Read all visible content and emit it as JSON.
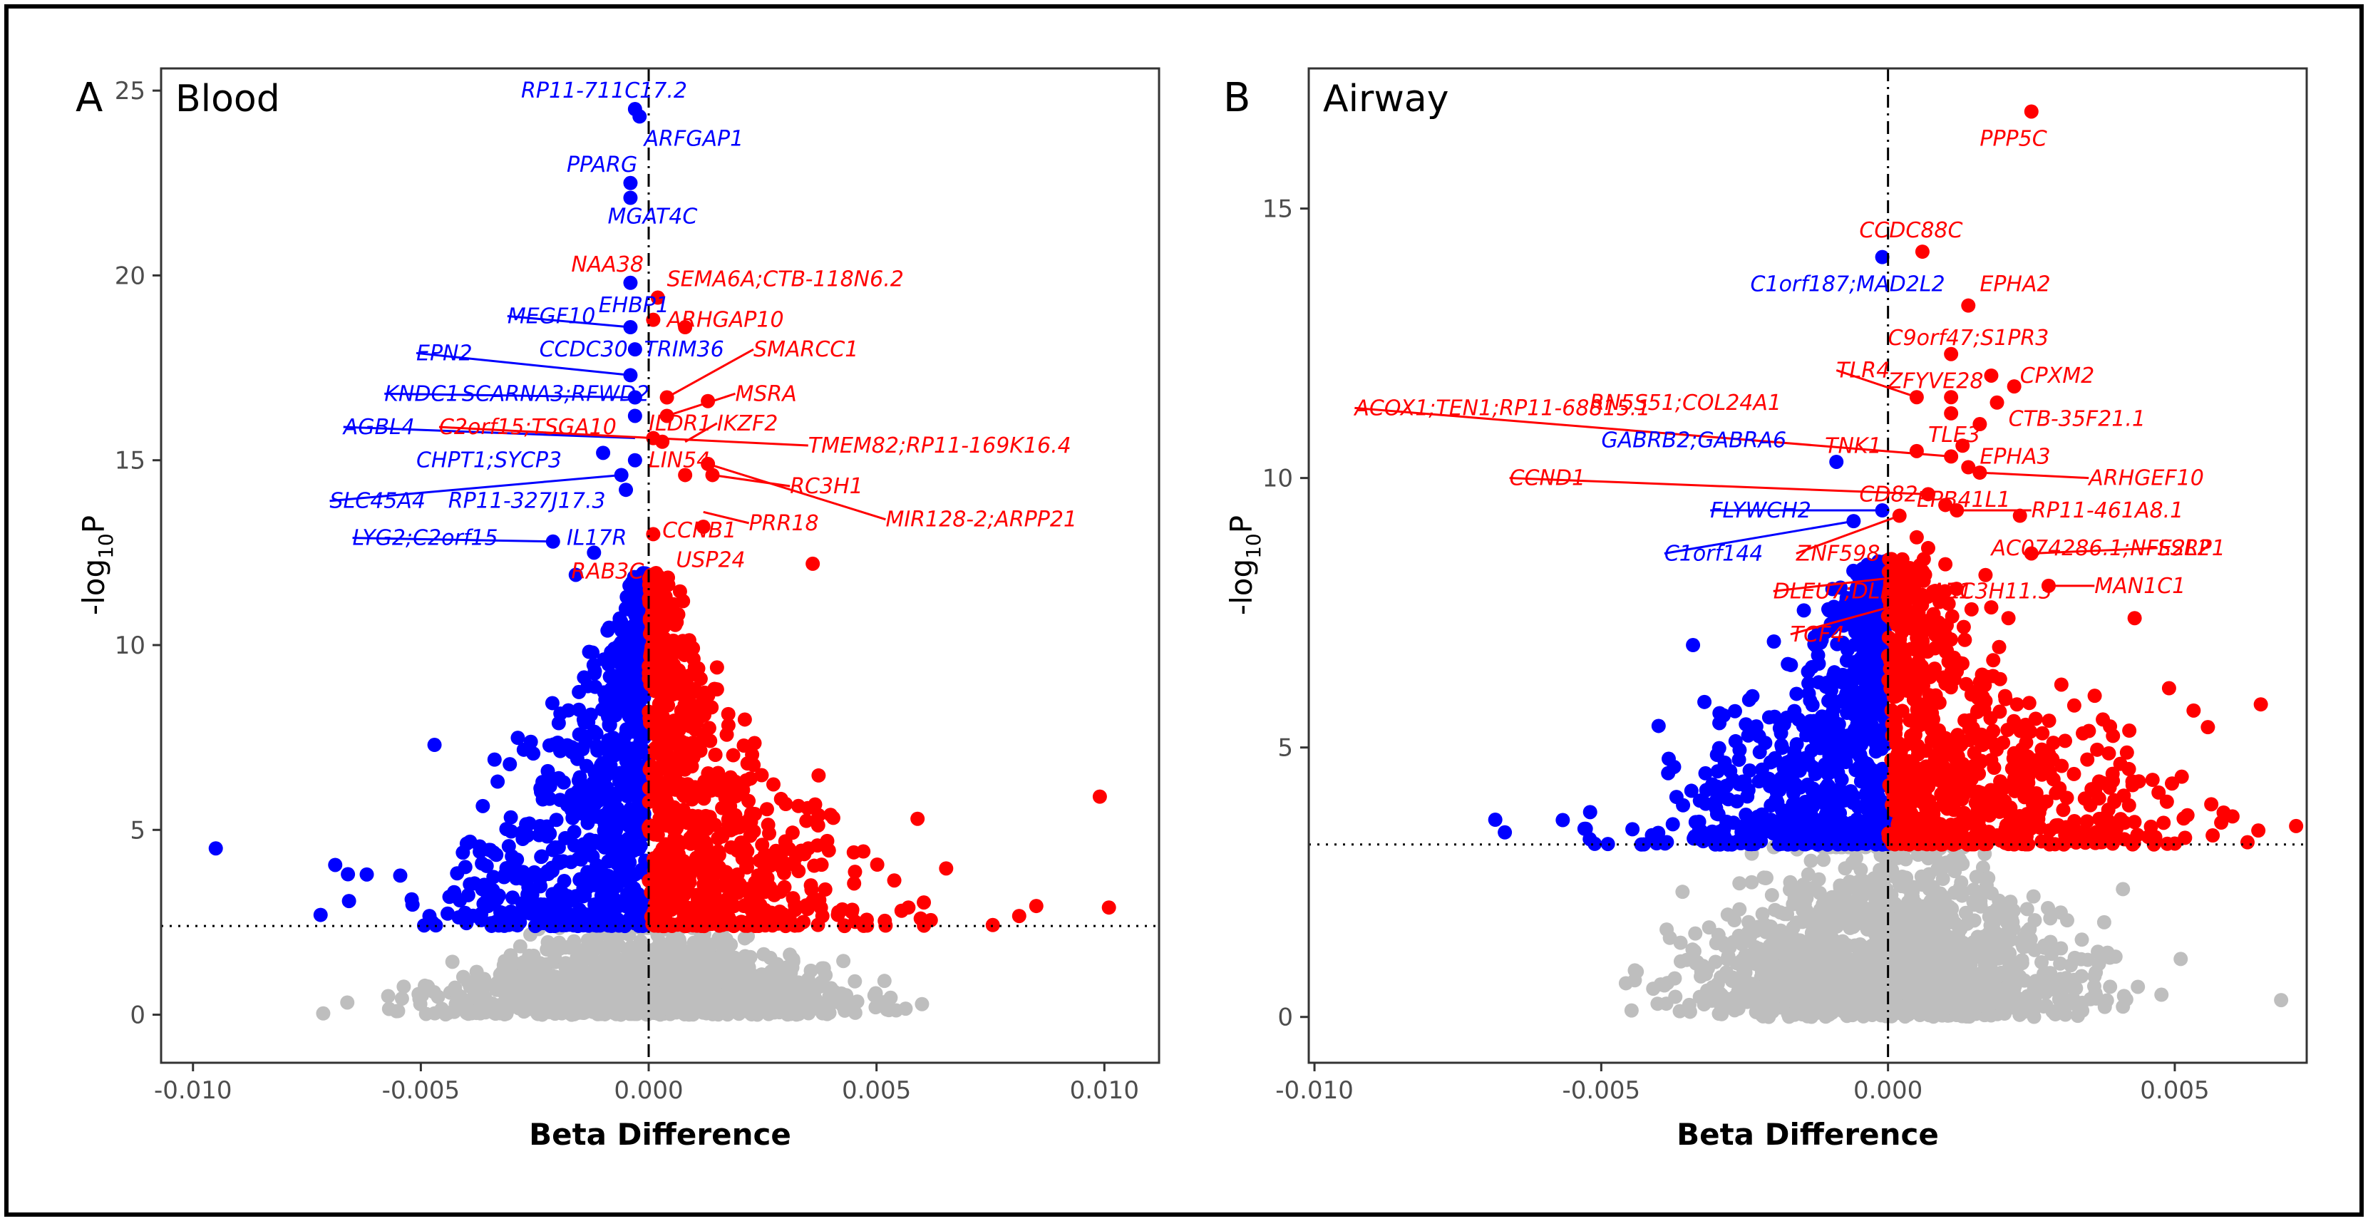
{
  "colors": {
    "down": "#0000ff",
    "up": "#ff0000",
    "ns": "#bebebe",
    "frame": "#000000",
    "axis": "#333333"
  },
  "chart_data": [
    {
      "type": "scatter",
      "panel_letter": "A",
      "title": "Blood",
      "xlabel": "Beta Difference",
      "ylabel_main": "-log",
      "ylabel_sub": "10",
      "ylabel_tail": "P",
      "xlim": [
        -0.0107,
        0.0112
      ],
      "ylim": [
        -1.3,
        25.6
      ],
      "x_ticks": [
        -0.01,
        -0.005,
        0.0,
        0.005,
        0.01
      ],
      "x_tick_labels": [
        "-0.010",
        "-0.005",
        "0.000",
        "0.005",
        "0.010"
      ],
      "y_ticks": [
        0,
        5,
        10,
        15,
        20,
        25
      ],
      "y_tick_labels": [
        "0",
        "5",
        "10",
        "15",
        "20",
        "25"
      ],
      "threshold": 2.4,
      "grid": false,
      "highlighted": [
        {
          "x": -0.0003,
          "y": 24.5
        },
        {
          "x": -0.0002,
          "y": 24.3
        },
        {
          "x": -0.0004,
          "y": 22.5
        },
        {
          "x": -0.0004,
          "y": 22.1
        },
        {
          "x": -0.0004,
          "y": 19.8
        },
        {
          "x": 0.0002,
          "y": 19.4
        },
        {
          "x": 0.0001,
          "y": 18.8
        },
        {
          "x": 0.0008,
          "y": 18.6
        },
        {
          "x": -0.0004,
          "y": 18.6
        },
        {
          "x": -0.0003,
          "y": 18.0
        },
        {
          "x": -0.0004,
          "y": 17.3
        },
        {
          "x": -0.0003,
          "y": 16.7
        },
        {
          "x": 0.0004,
          "y": 16.7
        },
        {
          "x": 0.0013,
          "y": 16.6
        },
        {
          "x": -0.0003,
          "y": 16.2
        },
        {
          "x": 0.0004,
          "y": 16.2
        },
        {
          "x": 0.0001,
          "y": 15.6
        },
        {
          "x": 0.0003,
          "y": 15.5
        },
        {
          "x": -0.001,
          "y": 15.2
        },
        {
          "x": -0.0003,
          "y": 15.0
        },
        {
          "x": 0.0008,
          "y": 14.6
        },
        {
          "x": 0.0013,
          "y": 14.9
        },
        {
          "x": 0.0014,
          "y": 14.6
        },
        {
          "x": -0.0006,
          "y": 14.6
        },
        {
          "x": -0.0005,
          "y": 14.2
        },
        {
          "x": -0.0021,
          "y": 12.8
        },
        {
          "x": -0.0012,
          "y": 12.5
        },
        {
          "x": 0.0001,
          "y": 13.0
        },
        {
          "x": 0.0012,
          "y": 13.2
        },
        {
          "x": -0.0016,
          "y": 11.9
        },
        {
          "x": 0.0036,
          "y": 12.2
        }
      ],
      "labels": [
        {
          "text": "RP11-711C17.2",
          "side": "down",
          "x": -0.0003,
          "y": 24.5,
          "lx": -0.0028,
          "ly": 25.0,
          "leader": false
        },
        {
          "text": "ARFGAP1",
          "side": "down",
          "x": -0.0002,
          "y": 24.3,
          "lx": -0.0001,
          "ly": 23.7,
          "leader": false
        },
        {
          "text": "PPARG",
          "side": "down",
          "x": -0.0004,
          "y": 22.5,
          "lx": -0.0018,
          "ly": 23.0,
          "leader": false
        },
        {
          "text": "MGAT4C",
          "side": "down",
          "x": -0.0004,
          "y": 22.1,
          "lx": -0.0009,
          "ly": 21.6,
          "leader": false
        },
        {
          "text": "NAA38",
          "side": "up",
          "x": -0.0004,
          "y": 19.8,
          "lx": -0.0017,
          "ly": 20.3,
          "leader": false
        },
        {
          "text": "SEMA6A;CTB-118N6.2",
          "side": "up",
          "x": 0.0002,
          "y": 19.4,
          "lx": 0.0004,
          "ly": 19.9,
          "leader": false
        },
        {
          "text": "ARHGAP10",
          "side": "up",
          "x": 0.0001,
          "y": 18.8,
          "lx": 0.0004,
          "ly": 18.8,
          "leader": false
        },
        {
          "text": "MEGF10",
          "side": "down",
          "x": -0.0004,
          "y": 18.6,
          "lx": -0.0031,
          "ly": 18.9,
          "leader": true
        },
        {
          "text": "EHBP1",
          "side": "down",
          "x": -0.0004,
          "y": 18.6,
          "lx": -0.0011,
          "ly": 19.2,
          "leader": false
        },
        {
          "text": "TRIM36",
          "side": "down",
          "x": -0.0003,
          "y": 18.0,
          "lx": -0.0001,
          "ly": 18.0,
          "leader": false
        },
        {
          "text": "CCDC30",
          "side": "down",
          "x": -0.0003,
          "y": 18.0,
          "lx": -0.0024,
          "ly": 18.0,
          "leader": false
        },
        {
          "text": "SMARCC1",
          "side": "up",
          "x": 0.0004,
          "y": 16.7,
          "lx": 0.0023,
          "ly": 18.0,
          "leader": true
        },
        {
          "text": "EPN2",
          "side": "down",
          "x": -0.0004,
          "y": 17.3,
          "lx": -0.0051,
          "ly": 17.9,
          "leader": true
        },
        {
          "text": "KNDC1",
          "side": "down",
          "x": -0.0003,
          "y": 16.7,
          "lx": -0.0058,
          "ly": 16.8,
          "leader": true
        },
        {
          "text": "SCARNA3;RFWD2",
          "side": "down",
          "x": -0.0003,
          "y": 16.2,
          "lx": -0.0041,
          "ly": 16.8,
          "leader": false
        },
        {
          "text": "MSRA",
          "side": "up",
          "x": 0.0004,
          "y": 16.2,
          "lx": 0.0019,
          "ly": 16.8,
          "leader": true
        },
        {
          "text": "AGBL4",
          "side": "down",
          "x": -0.0003,
          "y": 15.6,
          "lx": -0.0067,
          "ly": 15.9,
          "leader": true
        },
        {
          "text": "C2orf15;TSGA10",
          "side": "up",
          "x": 0.0001,
          "y": 15.6,
          "lx": -0.0046,
          "ly": 15.9,
          "leader": true
        },
        {
          "text": "ILDR1",
          "side": "up",
          "x": 0.0003,
          "y": 15.5,
          "lx": 0.0,
          "ly": 16.0,
          "leader": false
        },
        {
          "text": "IKZF2",
          "side": "up",
          "x": 0.0008,
          "y": 15.5,
          "lx": 0.0015,
          "ly": 16.0,
          "leader": true
        },
        {
          "text": "TMEM82;RP11-169K16.4",
          "side": "up",
          "x": 0.0001,
          "y": 15.6,
          "lx": 0.0035,
          "ly": 15.4,
          "leader": true
        },
        {
          "text": "CHPT1;SYCP3",
          "side": "down",
          "x": -0.001,
          "y": 15.2,
          "lx": -0.0051,
          "ly": 15.0,
          "leader": false
        },
        {
          "text": "LIN54",
          "side": "up",
          "x": -0.0003,
          "y": 15.0,
          "lx": 0.0,
          "ly": 15.0,
          "leader": false
        },
        {
          "text": "RC3H1",
          "side": "up",
          "x": 0.0014,
          "y": 14.6,
          "lx": 0.0031,
          "ly": 14.3,
          "leader": true
        },
        {
          "text": "SLC45A4",
          "side": "down",
          "x": -0.0006,
          "y": 14.6,
          "lx": -0.007,
          "ly": 13.9,
          "leader": true
        },
        {
          "text": "RP11-327J17.3",
          "side": "down",
          "x": -0.0005,
          "y": 14.2,
          "lx": -0.0044,
          "ly": 13.9,
          "leader": false
        },
        {
          "text": "MIR128-2;ARPP21",
          "side": "up",
          "x": 0.0013,
          "y": 14.9,
          "lx": 0.0052,
          "ly": 13.4,
          "leader": true
        },
        {
          "text": "PRR18",
          "side": "up",
          "x": 0.0012,
          "y": 13.6,
          "lx": 0.0022,
          "ly": 13.3,
          "leader": true
        },
        {
          "text": "CCNB1",
          "side": "up",
          "x": 0.0001,
          "y": 13.0,
          "lx": 0.0003,
          "ly": 13.1,
          "leader": false
        },
        {
          "text": "LYG2;C2orf15",
          "side": "down",
          "x": -0.0021,
          "y": 12.8,
          "lx": -0.0065,
          "ly": 12.9,
          "leader": true
        },
        {
          "text": "IL17R",
          "side": "down",
          "x": -0.0012,
          "y": 12.5,
          "lx": -0.0018,
          "ly": 12.9,
          "leader": false
        },
        {
          "text": "RAB3C",
          "side": "up",
          "x": -0.0016,
          "y": 11.9,
          "lx": -0.0017,
          "ly": 12.0,
          "leader": false
        },
        {
          "text": "USP24",
          "side": "up",
          "x": 0.0001,
          "y": 12.3,
          "lx": 0.0006,
          "ly": 12.3,
          "leader": false
        }
      ]
    },
    {
      "type": "scatter",
      "panel_letter": "B",
      "title": "Airway",
      "xlabel": "Beta Difference",
      "ylabel_main": "-log",
      "ylabel_sub": "10",
      "ylabel_tail": "P",
      "xlim": [
        -0.0101,
        0.0073
      ],
      "ylim": [
        -0.85,
        17.6
      ],
      "x_ticks": [
        -0.01,
        -0.005,
        0.0,
        0.005
      ],
      "x_tick_labels": [
        "-0.010",
        "-0.005",
        "0.000",
        "0.005"
      ],
      "y_ticks": [
        0,
        5,
        10,
        15
      ],
      "y_tick_labels": [
        "0",
        "5",
        "10",
        "15"
      ],
      "threshold": 3.2,
      "grid": false,
      "highlighted": [
        {
          "x": 0.0025,
          "y": 16.8
        },
        {
          "x": 0.0006,
          "y": 14.2
        },
        {
          "x": -0.0001,
          "y": 14.1
        },
        {
          "x": 0.0014,
          "y": 13.2
        },
        {
          "x": 0.0011,
          "y": 12.3
        },
        {
          "x": 0.0018,
          "y": 11.9
        },
        {
          "x": 0.0022,
          "y": 11.7
        },
        {
          "x": 0.0019,
          "y": 11.4
        },
        {
          "x": 0.0005,
          "y": 11.5
        },
        {
          "x": 0.0011,
          "y": 11.5
        },
        {
          "x": 0.0011,
          "y": 11.2
        },
        {
          "x": 0.0016,
          "y": 11.0
        },
        {
          "x": 0.0013,
          "y": 10.6
        },
        {
          "x": 0.0011,
          "y": 10.4
        },
        {
          "x": 0.0014,
          "y": 10.2
        },
        {
          "x": 0.0005,
          "y": 10.5
        },
        {
          "x": -0.0009,
          "y": 10.3
        },
        {
          "x": 0.0016,
          "y": 10.1
        },
        {
          "x": 0.0007,
          "y": 9.7
        },
        {
          "x": 0.001,
          "y": 9.5
        },
        {
          "x": 0.0012,
          "y": 9.4
        },
        {
          "x": 0.0023,
          "y": 9.3
        },
        {
          "x": 0.0002,
          "y": 9.3
        },
        {
          "x": -0.0001,
          "y": 9.4
        },
        {
          "x": -0.0006,
          "y": 9.2
        },
        {
          "x": 0.0005,
          "y": 8.9
        },
        {
          "x": 0.0007,
          "y": 8.7
        },
        {
          "x": 0.001,
          "y": 8.4
        },
        {
          "x": 0.0025,
          "y": 8.6
        },
        {
          "x": 0.0017,
          "y": 8.2
        },
        {
          "x": 0.0028,
          "y": 8.0
        },
        {
          "x": 0.0005,
          "y": 8.2
        },
        {
          "x": 0.0007,
          "y": 7.8
        },
        {
          "x": 0.0009,
          "y": 7.7
        },
        {
          "x": 0.0021,
          "y": 7.4
        },
        {
          "x": 0.0043,
          "y": 7.4
        },
        {
          "x": 0.0018,
          "y": 7.6
        }
      ],
      "labels": [
        {
          "text": "PPP5C",
          "side": "up",
          "x": 0.0025,
          "y": 16.8,
          "lx": 0.0016,
          "ly": 16.3,
          "leader": false
        },
        {
          "text": "CCDC88C",
          "side": "up",
          "x": 0.0006,
          "y": 14.2,
          "lx": -0.0005,
          "ly": 14.6,
          "leader": false
        },
        {
          "text": "C1orf187;MAD2L2",
          "side": "down",
          "x": -0.0001,
          "y": 14.1,
          "lx": -0.0024,
          "ly": 13.6,
          "leader": false
        },
        {
          "text": "EPHA2",
          "side": "up",
          "x": 0.0014,
          "y": 13.2,
          "lx": 0.0016,
          "ly": 13.6,
          "leader": false
        },
        {
          "text": "C9orf47;S1PR3",
          "side": "up",
          "x": 0.0011,
          "y": 12.3,
          "lx": 0.0,
          "ly": 12.6,
          "leader": false
        },
        {
          "text": "TLR4",
          "side": "up",
          "x": 0.0005,
          "y": 11.5,
          "lx": -0.0009,
          "ly": 12.0,
          "leader": true
        },
        {
          "text": "ZFYVE28",
          "side": "up",
          "x": 0.0011,
          "y": 11.5,
          "lx": 0.0,
          "ly": 11.8,
          "leader": false
        },
        {
          "text": "CPXM2",
          "side": "up",
          "x": 0.0022,
          "y": 11.7,
          "lx": 0.0023,
          "ly": 11.9,
          "leader": false
        },
        {
          "text": "ACOX1;TEN1;RP11-68815.1",
          "side": "up",
          "x": 0.0011,
          "y": 10.4,
          "lx": -0.0093,
          "ly": 11.3,
          "leader": true
        },
        {
          "text": "RN5S51;COL24A1",
          "side": "up",
          "x": 0.0005,
          "y": 10.5,
          "lx": -0.0052,
          "ly": 11.4,
          "leader": false
        },
        {
          "text": "CTB-35F21.1",
          "side": "up",
          "x": 0.0019,
          "y": 11.1,
          "lx": 0.0021,
          "ly": 11.1,
          "leader": false
        },
        {
          "text": "TLE3",
          "side": "up",
          "x": 0.0016,
          "y": 10.9,
          "lx": 0.0007,
          "ly": 10.8,
          "leader": false
        },
        {
          "text": "GABRB2;GABRA6",
          "side": "down",
          "x": -0.0009,
          "y": 10.3,
          "lx": -0.005,
          "ly": 10.7,
          "leader": false
        },
        {
          "text": "TNK1",
          "side": "up",
          "x": 0.0005,
          "y": 10.5,
          "lx": -0.0011,
          "ly": 10.6,
          "leader": false
        },
        {
          "text": "EPHA3",
          "side": "up",
          "x": 0.0014,
          "y": 10.2,
          "lx": 0.0016,
          "ly": 10.4,
          "leader": false
        },
        {
          "text": "ARHGEF10",
          "side": "up",
          "x": 0.0016,
          "y": 10.1,
          "lx": 0.0035,
          "ly": 10.0,
          "leader": true
        },
        {
          "text": "CCND1",
          "side": "up",
          "x": 0.0007,
          "y": 9.7,
          "lx": -0.0066,
          "ly": 10.0,
          "leader": true
        },
        {
          "text": "CD82",
          "side": "up",
          "x": 0.0007,
          "y": 9.7,
          "lx": -0.0005,
          "ly": 9.7,
          "leader": false
        },
        {
          "text": "EPB41L1",
          "side": "up",
          "x": 0.0012,
          "y": 9.4,
          "lx": 0.0005,
          "ly": 9.6,
          "leader": false
        },
        {
          "text": "RP11-461A8.1",
          "side": "up",
          "x": 0.0012,
          "y": 9.4,
          "lx": 0.0025,
          "ly": 9.4,
          "leader": true
        },
        {
          "text": "FLYWCH2",
          "side": "down",
          "x": -0.0001,
          "y": 9.4,
          "lx": -0.0031,
          "ly": 9.4,
          "leader": true
        },
        {
          "text": "C1orf144",
          "side": "down",
          "x": -0.0006,
          "y": 9.2,
          "lx": -0.0039,
          "ly": 8.6,
          "leader": true
        },
        {
          "text": "ZNF598",
          "side": "up",
          "x": 0.0002,
          "y": 9.3,
          "lx": -0.0016,
          "ly": 8.6,
          "leader": true
        },
        {
          "text": "AC074286.1;NFE2L2",
          "side": "up",
          "x": 0.0025,
          "y": 8.6,
          "lx": 0.0018,
          "ly": 8.7,
          "leader": false
        },
        {
          "text": "SSRP1",
          "side": "up",
          "x": 0.0025,
          "y": 8.6,
          "lx": 0.0047,
          "ly": 8.7,
          "leader": true
        },
        {
          "text": "MAN1C1",
          "side": "up",
          "x": 0.0028,
          "y": 8.0,
          "lx": 0.0036,
          "ly": 8.0,
          "leader": true
        },
        {
          "text": "DLEU7;DLEU7-AS1",
          "side": "up",
          "x": 0.0005,
          "y": 8.2,
          "lx": -0.002,
          "ly": 7.9,
          "leader": true
        },
        {
          "text": "ZC3H11.3",
          "side": "up",
          "x": 0.0021,
          "y": 7.4,
          "lx": 0.001,
          "ly": 7.9,
          "leader": false
        },
        {
          "text": "TCF4",
          "side": "up",
          "x": 0.0007,
          "y": 7.8,
          "lx": -0.0017,
          "ly": 7.1,
          "leader": true
        }
      ]
    }
  ]
}
